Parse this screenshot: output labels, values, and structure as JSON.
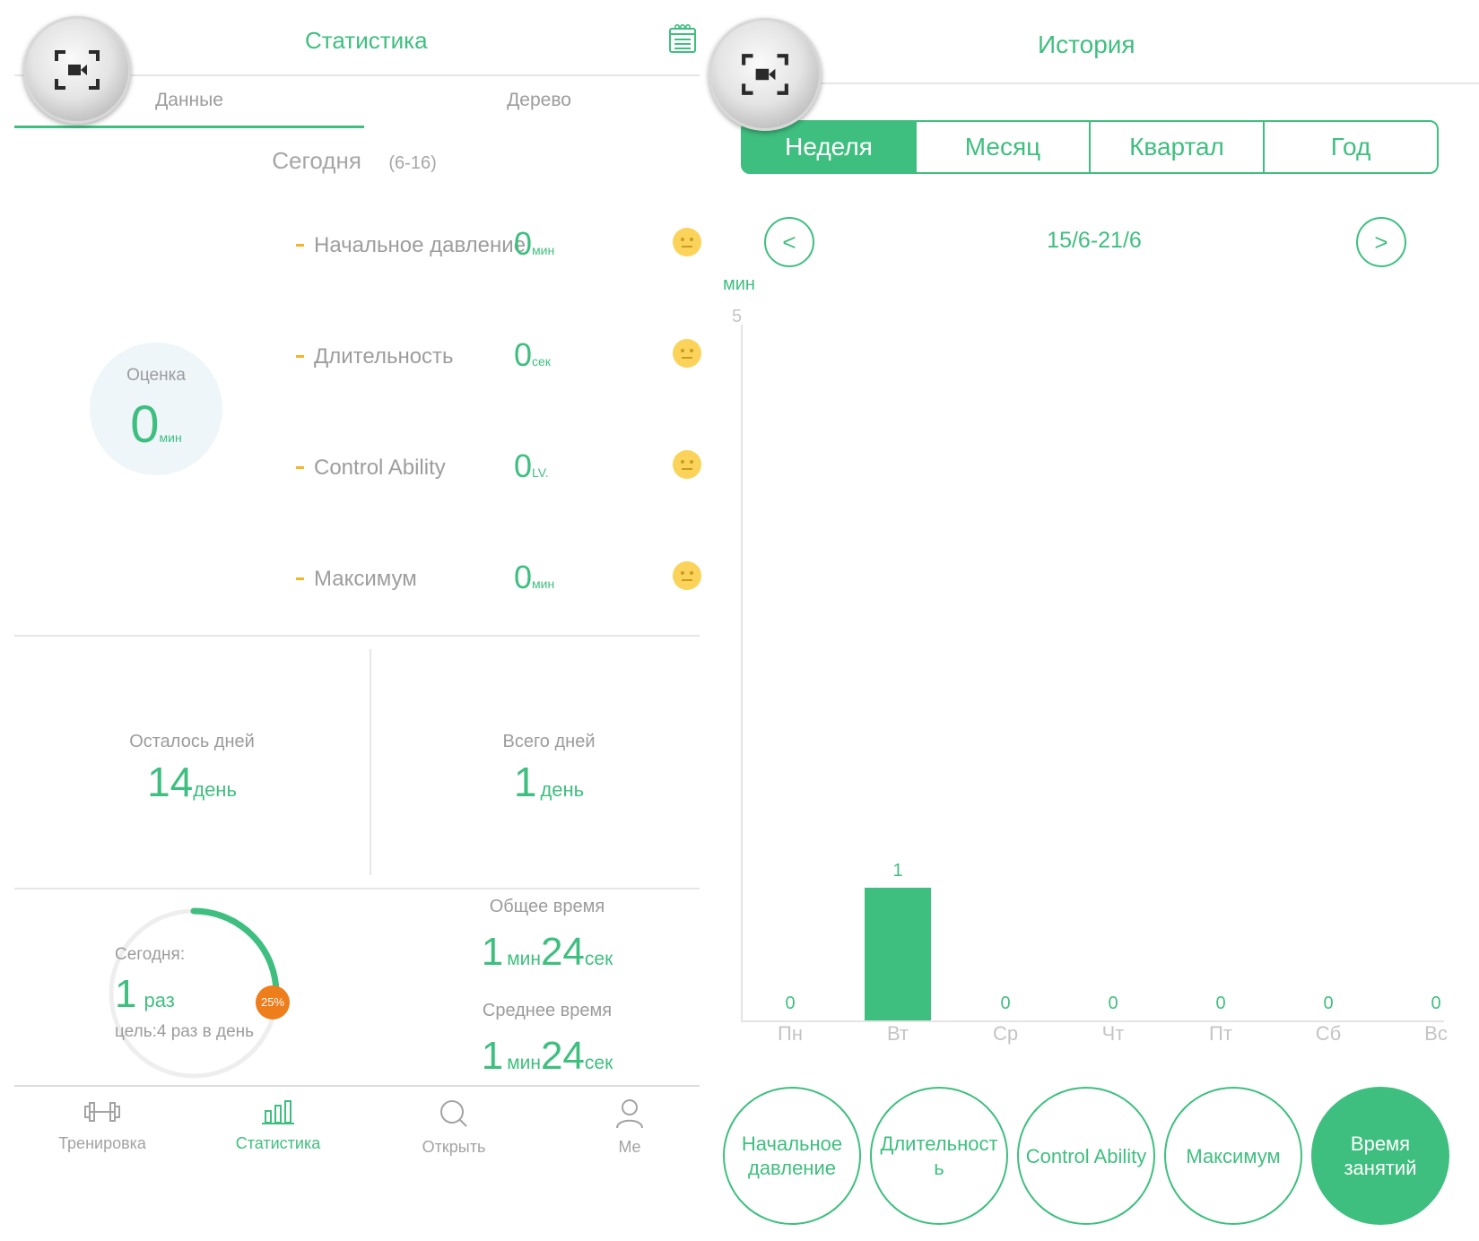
{
  "left": {
    "title": "Статистика",
    "tabs": [
      {
        "label": "Данные"
      },
      {
        "label": "Дерево"
      }
    ],
    "today": {
      "label": "Сегодня",
      "date": "(6-16)"
    },
    "score": {
      "label": "Оценка",
      "value": "0",
      "unit": "мин"
    },
    "metrics": [
      {
        "label": "Начальное давление",
        "value": "0",
        "unit": "мин"
      },
      {
        "label": "Длительность",
        "value": "0",
        "unit": "сек"
      },
      {
        "label": "Control Ability",
        "value": "0",
        "unit": "LV."
      },
      {
        "label": "Максимум",
        "value": "0",
        "unit": "мин"
      }
    ],
    "days_left": {
      "label": "Осталось дней",
      "value": "14",
      "unit": "день"
    },
    "days_total": {
      "label": "Всего дней",
      "value": "1",
      "unit": "день"
    },
    "progress": {
      "label": "Сегодня:",
      "count": "1",
      "unit": "раз",
      "goal": "цель:4 раз в день",
      "percent": 25,
      "percent_label": "25%"
    },
    "total_time": {
      "label": "Общее время",
      "min": "1",
      "min_unit": "мин",
      "sec": "24",
      "sec_unit": "сек"
    },
    "avg_time": {
      "label": "Среднее время",
      "min": "1",
      "min_unit": "мин",
      "sec": "24",
      "sec_unit": "сек"
    },
    "nav": [
      {
        "label": "Тренировка",
        "icon": "dumbbell-icon"
      },
      {
        "label": "Статистика",
        "icon": "bar-chart-icon"
      },
      {
        "label": "Открыть",
        "icon": "search-icon"
      },
      {
        "label": "Me",
        "icon": "person-icon"
      }
    ]
  },
  "right": {
    "title": "История",
    "segments": [
      {
        "label": "Неделя"
      },
      {
        "label": "Месяц"
      },
      {
        "label": "Квартал"
      },
      {
        "label": "Год"
      }
    ],
    "prev": "<",
    "next": ">",
    "date_range": "15/6-21/6",
    "buttons": [
      {
        "label": "Начальное давление"
      },
      {
        "label": "Длительност ь"
      },
      {
        "label": "Control Ability"
      },
      {
        "label": "Максимум"
      },
      {
        "label": "Время занятий"
      }
    ]
  },
  "chart_data": {
    "type": "bar",
    "ylabel": "мин",
    "ylim": [
      0,
      5
    ],
    "y_ticks": [
      "5"
    ],
    "categories": [
      "Пн",
      "Вт",
      "Ср",
      "Чт",
      "Пт",
      "Сб",
      "Вс"
    ],
    "values": [
      0,
      1,
      0,
      0,
      0,
      0,
      0
    ],
    "value_labels": [
      "0",
      "1",
      "0",
      "0",
      "0",
      "0",
      "0"
    ]
  },
  "colors": {
    "accent": "#3fbf7f",
    "warn": "#f5b52b",
    "badge": "#ee7d1b"
  }
}
